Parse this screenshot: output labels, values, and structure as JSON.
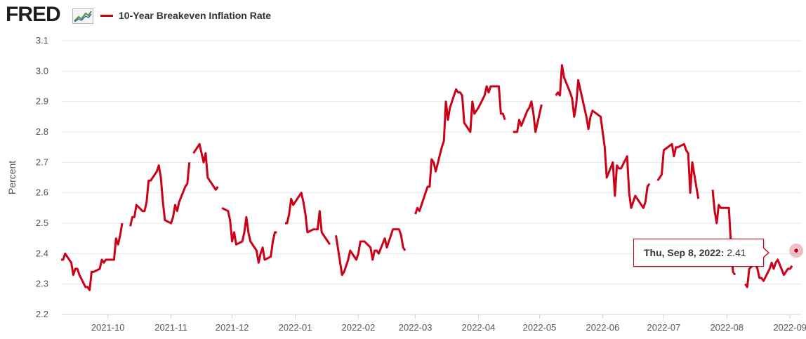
{
  "header": {
    "logo_text": "FRED",
    "logo_icon": "chart-line-icon",
    "legend_label": "10-Year Breakeven Inflation Rate",
    "legend_color": "#cc0016"
  },
  "tooltip": {
    "date": "Thu, Sep 8, 2022:",
    "value": "2.41"
  },
  "chart_data": {
    "type": "line",
    "title": "",
    "xlabel": "",
    "ylabel": "Percent",
    "ylim": [
      2.2,
      3.1
    ],
    "yticks": [
      2.2,
      2.3,
      2.4,
      2.5,
      2.6,
      2.7,
      2.8,
      2.9,
      3.0,
      3.1
    ],
    "xlim": [
      "2021-09-08",
      "2022-09-09"
    ],
    "xticks": [
      "2021-10",
      "2021-11",
      "2021-12",
      "2022-01",
      "2022-02",
      "2022-03",
      "2022-04",
      "2022-05",
      "2022-06",
      "2022-07",
      "2022-08",
      "2022-09"
    ],
    "grid": "horizontal",
    "legend_position": "top-left",
    "series": [
      {
        "name": "10-Year Breakeven Inflation Rate",
        "color": "#cc0016",
        "points": [
          [
            "2021-09-08",
            2.38
          ],
          [
            "2021-09-09",
            2.38
          ],
          [
            "2021-09-10",
            2.4
          ],
          [
            "2021-09-13",
            2.37
          ],
          [
            "2021-09-14",
            2.33
          ],
          [
            "2021-09-15",
            2.35
          ],
          [
            "2021-09-16",
            2.35
          ],
          [
            "2021-09-17",
            2.33
          ],
          [
            "2021-09-20",
            2.29
          ],
          [
            "2021-09-21",
            2.29
          ],
          [
            "2021-09-22",
            2.28
          ],
          [
            "2021-09-23",
            2.34
          ],
          [
            "2021-09-24",
            2.34
          ],
          [
            "2021-09-27",
            2.35
          ],
          [
            "2021-09-28",
            2.38
          ],
          [
            "2021-09-29",
            2.37
          ],
          [
            "2021-09-30",
            2.38
          ],
          [
            "2021-10-01",
            2.38
          ],
          [
            "2021-10-04",
            2.38
          ],
          [
            "2021-10-05",
            2.45
          ],
          [
            "2021-10-06",
            2.43
          ],
          [
            "2021-10-07",
            2.46
          ],
          [
            "2021-10-08",
            2.5
          ],
          [
            "2021-10-11",
            null
          ],
          [
            "2021-10-12",
            2.49
          ],
          [
            "2021-10-13",
            2.52
          ],
          [
            "2021-10-14",
            2.52
          ],
          [
            "2021-10-15",
            2.56
          ],
          [
            "2021-10-18",
            2.54
          ],
          [
            "2021-10-19",
            2.54
          ],
          [
            "2021-10-20",
            2.57
          ],
          [
            "2021-10-21",
            2.64
          ],
          [
            "2021-10-22",
            2.64
          ],
          [
            "2021-10-25",
            2.67
          ],
          [
            "2021-10-26",
            2.69
          ],
          [
            "2021-10-27",
            2.65
          ],
          [
            "2021-10-28",
            2.57
          ],
          [
            "2021-10-29",
            2.51
          ],
          [
            "2021-11-01",
            2.5
          ],
          [
            "2021-11-02",
            2.52
          ],
          [
            "2021-11-03",
            2.56
          ],
          [
            "2021-11-04",
            2.54
          ],
          [
            "2021-11-05",
            2.57
          ],
          [
            "2021-11-08",
            2.62
          ],
          [
            "2021-11-09",
            2.63
          ],
          [
            "2021-11-10",
            2.7
          ],
          [
            "2021-11-11",
            null
          ],
          [
            "2021-11-12",
            2.73
          ],
          [
            "2021-11-15",
            2.76
          ],
          [
            "2021-11-16",
            2.73
          ],
          [
            "2021-11-17",
            2.7
          ],
          [
            "2021-11-18",
            2.73
          ],
          [
            "2021-11-19",
            2.65
          ],
          [
            "2021-11-22",
            2.62
          ],
          [
            "2021-11-23",
            2.61
          ],
          [
            "2021-11-24",
            2.62
          ],
          [
            "2021-11-25",
            null
          ],
          [
            "2021-11-26",
            2.55
          ],
          [
            "2021-11-29",
            2.54
          ],
          [
            "2021-11-30",
            2.51
          ],
          [
            "2021-12-01",
            2.44
          ],
          [
            "2021-12-02",
            2.47
          ],
          [
            "2021-12-03",
            2.43
          ],
          [
            "2021-12-06",
            2.44
          ],
          [
            "2021-12-07",
            2.47
          ],
          [
            "2021-12-08",
            2.52
          ],
          [
            "2021-12-09",
            2.47
          ],
          [
            "2021-12-10",
            2.44
          ],
          [
            "2021-12-13",
            2.41
          ],
          [
            "2021-12-14",
            2.37
          ],
          [
            "2021-12-15",
            2.4
          ],
          [
            "2021-12-16",
            2.42
          ],
          [
            "2021-12-17",
            2.38
          ],
          [
            "2021-12-20",
            2.39
          ],
          [
            "2021-12-21",
            2.44
          ],
          [
            "2021-12-22",
            2.47
          ],
          [
            "2021-12-23",
            2.47
          ],
          [
            "2021-12-24",
            null
          ],
          [
            "2021-12-27",
            2.5
          ],
          [
            "2021-12-28",
            2.5
          ],
          [
            "2021-12-29",
            2.53
          ],
          [
            "2021-12-30",
            2.58
          ],
          [
            "2021-12-31",
            2.56
          ],
          [
            "2022-01-03",
            2.59
          ],
          [
            "2022-01-04",
            2.6
          ],
          [
            "2022-01-05",
            2.57
          ],
          [
            "2022-01-06",
            2.53
          ],
          [
            "2022-01-07",
            2.47
          ],
          [
            "2022-01-10",
            2.48
          ],
          [
            "2022-01-11",
            2.48
          ],
          [
            "2022-01-12",
            2.48
          ],
          [
            "2022-01-13",
            2.54
          ],
          [
            "2022-01-14",
            2.47
          ],
          [
            "2022-01-17",
            2.44
          ],
          [
            "2022-01-18",
            2.43
          ],
          [
            "2022-01-19",
            null
          ],
          [
            "2022-01-20",
            null
          ],
          [
            "2022-01-21",
            2.46
          ],
          [
            "2022-01-24",
            2.33
          ],
          [
            "2022-01-25",
            2.34
          ],
          [
            "2022-01-26",
            2.36
          ],
          [
            "2022-01-27",
            2.38
          ],
          [
            "2022-01-28",
            2.41
          ],
          [
            "2022-01-31",
            2.38
          ],
          [
            "2022-02-01",
            2.4
          ],
          [
            "2022-02-02",
            2.44
          ],
          [
            "2022-02-03",
            2.44
          ],
          [
            "2022-02-04",
            2.44
          ],
          [
            "2022-02-07",
            2.42
          ],
          [
            "2022-02-08",
            2.38
          ],
          [
            "2022-02-09",
            2.41
          ],
          [
            "2022-02-10",
            2.41
          ],
          [
            "2022-02-11",
            2.4
          ],
          [
            "2022-02-14",
            2.45
          ],
          [
            "2022-02-15",
            2.42
          ],
          [
            "2022-02-16",
            2.44
          ],
          [
            "2022-02-17",
            2.46
          ],
          [
            "2022-02-18",
            2.48
          ],
          [
            "2022-02-21",
            2.48
          ],
          [
            "2022-02-22",
            2.46
          ],
          [
            "2022-02-23",
            2.42
          ],
          [
            "2022-02-24",
            2.41
          ],
          [
            "2022-02-25",
            null
          ],
          [
            "2022-02-28",
            null
          ],
          [
            "2022-03-01",
            2.53
          ],
          [
            "2022-03-02",
            2.55
          ],
          [
            "2022-03-03",
            2.54
          ],
          [
            "2022-03-04",
            2.56
          ],
          [
            "2022-03-07",
            2.62
          ],
          [
            "2022-03-08",
            2.62
          ],
          [
            "2022-03-09",
            2.71
          ],
          [
            "2022-03-10",
            2.7
          ],
          [
            "2022-03-11",
            2.67
          ],
          [
            "2022-03-14",
            2.75
          ],
          [
            "2022-03-15",
            2.77
          ],
          [
            "2022-03-16",
            2.9
          ],
          [
            "2022-03-17",
            2.84
          ],
          [
            "2022-03-18",
            2.88
          ],
          [
            "2022-03-21",
            2.94
          ],
          [
            "2022-03-22",
            2.93
          ],
          [
            "2022-03-23",
            2.93
          ],
          [
            "2022-03-24",
            2.92
          ],
          [
            "2022-03-25",
            2.83
          ],
          [
            "2022-03-28",
            2.8
          ],
          [
            "2022-03-29",
            2.9
          ],
          [
            "2022-03-30",
            2.86
          ],
          [
            "2022-03-31",
            2.87
          ],
          [
            "2022-04-01",
            2.88
          ],
          [
            "2022-04-04",
            2.92
          ],
          [
            "2022-04-05",
            2.95
          ],
          [
            "2022-04-06",
            2.93
          ],
          [
            "2022-04-07",
            2.95
          ],
          [
            "2022-04-08",
            2.95
          ],
          [
            "2022-04-11",
            2.95
          ],
          [
            "2022-04-12",
            2.86
          ],
          [
            "2022-04-13",
            2.86
          ],
          [
            "2022-04-14",
            2.84
          ],
          [
            "2022-04-15",
            null
          ],
          [
            "2022-04-18",
            2.8
          ],
          [
            "2022-04-19",
            2.8
          ],
          [
            "2022-04-20",
            2.8
          ],
          [
            "2022-04-21",
            2.84
          ],
          [
            "2022-04-22",
            2.82
          ],
          [
            "2022-04-25",
            2.87
          ],
          [
            "2022-04-26",
            2.88
          ],
          [
            "2022-04-27",
            2.9
          ],
          [
            "2022-04-28",
            2.86
          ],
          [
            "2022-04-29",
            2.8
          ],
          [
            "2022-05-02",
            2.89
          ],
          [
            "2022-05-03",
            null
          ],
          [
            "2022-05-09",
            2.92
          ],
          [
            "2022-05-10",
            2.93
          ],
          [
            "2022-05-11",
            2.92
          ],
          [
            "2022-05-12",
            3.02
          ],
          [
            "2022-05-13",
            2.98
          ],
          [
            "2022-05-16",
            2.93
          ],
          [
            "2022-05-17",
            2.91
          ],
          [
            "2022-05-18",
            2.85
          ],
          [
            "2022-05-19",
            2.89
          ],
          [
            "2022-05-20",
            2.97
          ],
          [
            "2022-05-23",
            2.88
          ],
          [
            "2022-05-24",
            2.85
          ],
          [
            "2022-05-25",
            2.81
          ],
          [
            "2022-05-26",
            2.85
          ],
          [
            "2022-05-27",
            2.87
          ],
          [
            "2022-05-31",
            2.85
          ],
          [
            "2022-06-01",
            2.8
          ],
          [
            "2022-06-02",
            2.75
          ],
          [
            "2022-06-03",
            2.65
          ],
          [
            "2022-06-06",
            2.7
          ],
          [
            "2022-06-07",
            2.59
          ],
          [
            "2022-06-08",
            2.69
          ],
          [
            "2022-06-09",
            2.68
          ],
          [
            "2022-06-10",
            2.68
          ],
          [
            "2022-06-13",
            2.72
          ],
          [
            "2022-06-14",
            2.6
          ],
          [
            "2022-06-15",
            2.55
          ],
          [
            "2022-06-16",
            2.57
          ],
          [
            "2022-06-17",
            2.59
          ],
          [
            "2022-06-21",
            2.55
          ],
          [
            "2022-06-22",
            2.57
          ],
          [
            "2022-06-23",
            2.62
          ],
          [
            "2022-06-24",
            2.63
          ],
          [
            "2022-06-27",
            null
          ],
          [
            "2022-06-28",
            2.64
          ],
          [
            "2022-06-29",
            2.65
          ],
          [
            "2022-06-30",
            2.66
          ],
          [
            "2022-07-01",
            2.74
          ],
          [
            "2022-07-05",
            2.76
          ],
          [
            "2022-07-06",
            2.72
          ],
          [
            "2022-07-07",
            2.75
          ],
          [
            "2022-07-08",
            2.75
          ],
          [
            "2022-07-11",
            2.76
          ],
          [
            "2022-07-12",
            2.74
          ],
          [
            "2022-07-13",
            2.73
          ],
          [
            "2022-07-14",
            2.6
          ],
          [
            "2022-07-15",
            2.7
          ],
          [
            "2022-07-18",
            2.58
          ],
          [
            "2022-07-19",
            null
          ],
          [
            "2022-07-25",
            2.61
          ],
          [
            "2022-07-26",
            2.54
          ],
          [
            "2022-07-27",
            2.5
          ],
          [
            "2022-07-28",
            2.56
          ],
          [
            "2022-07-29",
            2.55
          ],
          [
            "2022-08-01",
            2.55
          ],
          [
            "2022-08-02",
            2.55
          ],
          [
            "2022-08-03",
            2.43
          ],
          [
            "2022-08-04",
            2.34
          ],
          [
            "2022-08-05",
            2.33
          ],
          [
            "2022-08-08",
            null
          ],
          [
            "2022-08-10",
            2.3
          ],
          [
            "2022-08-11",
            2.29
          ],
          [
            "2022-08-12",
            2.35
          ],
          [
            "2022-08-15",
            2.37
          ],
          [
            "2022-08-16",
            2.35
          ],
          [
            "2022-08-17",
            2.32
          ],
          [
            "2022-08-18",
            2.32
          ],
          [
            "2022-08-19",
            2.31
          ],
          [
            "2022-08-22",
            2.35
          ],
          [
            "2022-08-23",
            2.37
          ],
          [
            "2022-08-24",
            2.35
          ],
          [
            "2022-08-25",
            2.37
          ],
          [
            "2022-08-26",
            2.38
          ],
          [
            "2022-08-29",
            2.33
          ],
          [
            "2022-08-30",
            2.34
          ],
          [
            "2022-08-31",
            2.35
          ],
          [
            "2022-09-01",
            2.35
          ],
          [
            "2022-09-02",
            2.36
          ]
        ]
      }
    ]
  }
}
